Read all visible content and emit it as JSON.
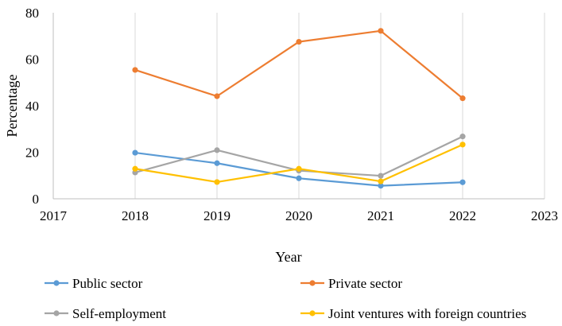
{
  "chart_data": {
    "type": "line",
    "x": [
      2018,
      2019,
      2020,
      2021,
      2022
    ],
    "xlim": [
      2017,
      2023
    ],
    "ylim": [
      0,
      80
    ],
    "x_ticks": [
      "2017",
      "2018",
      "2019",
      "2020",
      "2021",
      "2022",
      "2023"
    ],
    "y_ticks": [
      "0",
      "20",
      "40",
      "60",
      "80"
    ],
    "xlabel": "Year",
    "ylabel": "Percentage",
    "grid": "vertical",
    "legend_position": "bottom",
    "series": [
      {
        "name": "Public sector",
        "color": "#5B9BD5",
        "values": [
          19.8,
          15.3,
          8.8,
          5.6,
          7.1
        ]
      },
      {
        "name": "Private sector",
        "color": "#ED7D31",
        "values": [
          55.4,
          44.1,
          67.5,
          72.2,
          43.2
        ]
      },
      {
        "name": "Self-employment",
        "color": "#A5A5A5",
        "values": [
          11.3,
          20.9,
          12.1,
          9.9,
          26.8
        ]
      },
      {
        "name": "Joint ventures with foreign countries",
        "color": "#FFC000",
        "values": [
          12.9,
          7.2,
          12.9,
          7.5,
          23.3
        ]
      }
    ]
  }
}
